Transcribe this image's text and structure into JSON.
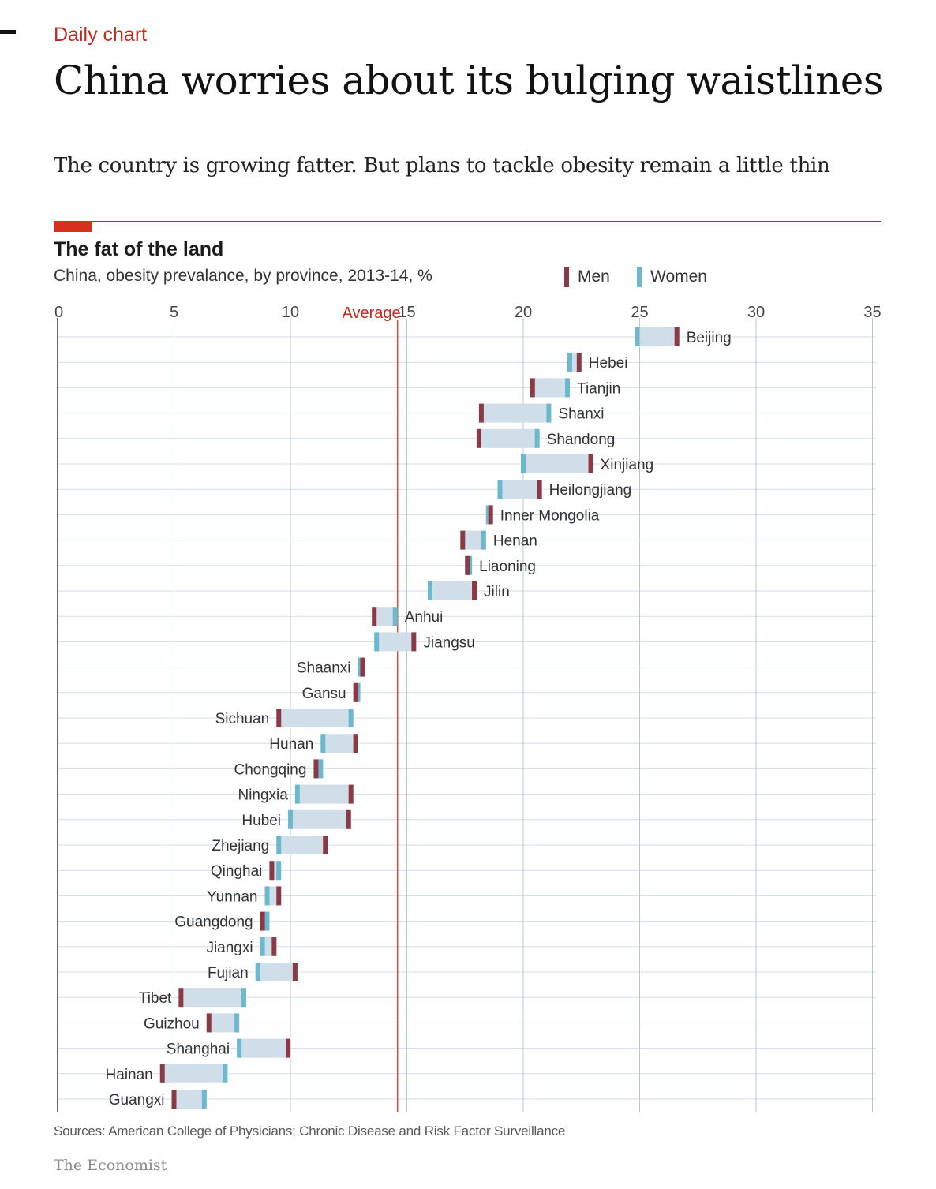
{
  "header": {
    "kicker": "Daily chart",
    "headline": "China worries about its bulging waistlines",
    "standfirst": "The country is growing fatter. But plans to tackle obesity remain a little thin"
  },
  "chart_data": {
    "type": "range-dot",
    "title": "The fat of the land",
    "subtitle": "China, obesity prevalance, by province, 2013-14, %",
    "xlim": [
      0,
      35
    ],
    "x_ticks": [
      "0",
      "5",
      "10",
      "15",
      "20",
      "25",
      "30",
      "35"
    ],
    "x_tick_values": [
      0,
      5,
      10,
      15,
      20,
      25,
      30,
      35
    ],
    "average": {
      "label": "Average",
      "value": 14.6
    },
    "series": [
      {
        "name": "Men",
        "color": "#8b3a45"
      },
      {
        "name": "Women",
        "color": "#6cb8cf"
      }
    ],
    "grid": true,
    "legend_position": "top-right",
    "provinces": [
      {
        "name": "Beijing",
        "men": 26.6,
        "women": 24.9
      },
      {
        "name": "Hebei",
        "men": 22.4,
        "women": 22.0
      },
      {
        "name": "Tianjin",
        "men": 20.4,
        "women": 21.9
      },
      {
        "name": "Shanxi",
        "men": 18.2,
        "women": 21.1
      },
      {
        "name": "Shandong",
        "men": 18.1,
        "women": 20.6
      },
      {
        "name": "Xinjiang",
        "men": 22.9,
        "women": 20.0
      },
      {
        "name": "Heilongjiang",
        "men": 20.7,
        "women": 19.0
      },
      {
        "name": "Inner Mongolia",
        "men": 18.6,
        "women": 18.5
      },
      {
        "name": "Henan",
        "men": 17.4,
        "women": 18.3
      },
      {
        "name": "Liaoning",
        "men": 17.6,
        "women": 17.7
      },
      {
        "name": "Jilin",
        "men": 17.9,
        "women": 16.0
      },
      {
        "name": "Anhui",
        "men": 13.6,
        "women": 14.5
      },
      {
        "name": "Jiangsu",
        "men": 15.3,
        "women": 13.7
      },
      {
        "name": "Shaanxi",
        "men": 13.1,
        "women": 13.0
      },
      {
        "name": "Gansu",
        "men": 12.8,
        "women": 12.9
      },
      {
        "name": "Sichuan",
        "men": 9.5,
        "women": 12.6
      },
      {
        "name": "Hunan",
        "men": 12.8,
        "women": 11.4
      },
      {
        "name": "Chongqing",
        "men": 11.1,
        "women": 11.3
      },
      {
        "name": "Ningxia",
        "men": 12.6,
        "women": 10.3
      },
      {
        "name": "Hubei",
        "men": 12.5,
        "women": 10.0
      },
      {
        "name": "Zhejiang",
        "men": 11.5,
        "women": 9.5
      },
      {
        "name": "Qinghai",
        "men": 9.2,
        "women": 9.5
      },
      {
        "name": "Yunnan",
        "men": 9.5,
        "women": 9.0
      },
      {
        "name": "Guangdong",
        "men": 8.8,
        "women": 9.0
      },
      {
        "name": "Jiangxi",
        "men": 9.3,
        "women": 8.8
      },
      {
        "name": "Fujian",
        "men": 10.2,
        "women": 8.6
      },
      {
        "name": "Tibet",
        "men": 5.3,
        "women": 8.0
      },
      {
        "name": "Guizhou",
        "men": 6.5,
        "women": 7.7
      },
      {
        "name": "Shanghai",
        "men": 9.9,
        "women": 7.8
      },
      {
        "name": "Hainan",
        "men": 4.5,
        "women": 7.2
      },
      {
        "name": "Guangxi",
        "men": 5.0,
        "women": 6.3
      }
    ]
  },
  "footer": {
    "sources": "Sources: American College of Physicians; Chronic Disease and Risk Factor Surveillance",
    "brand": "The Economist"
  }
}
